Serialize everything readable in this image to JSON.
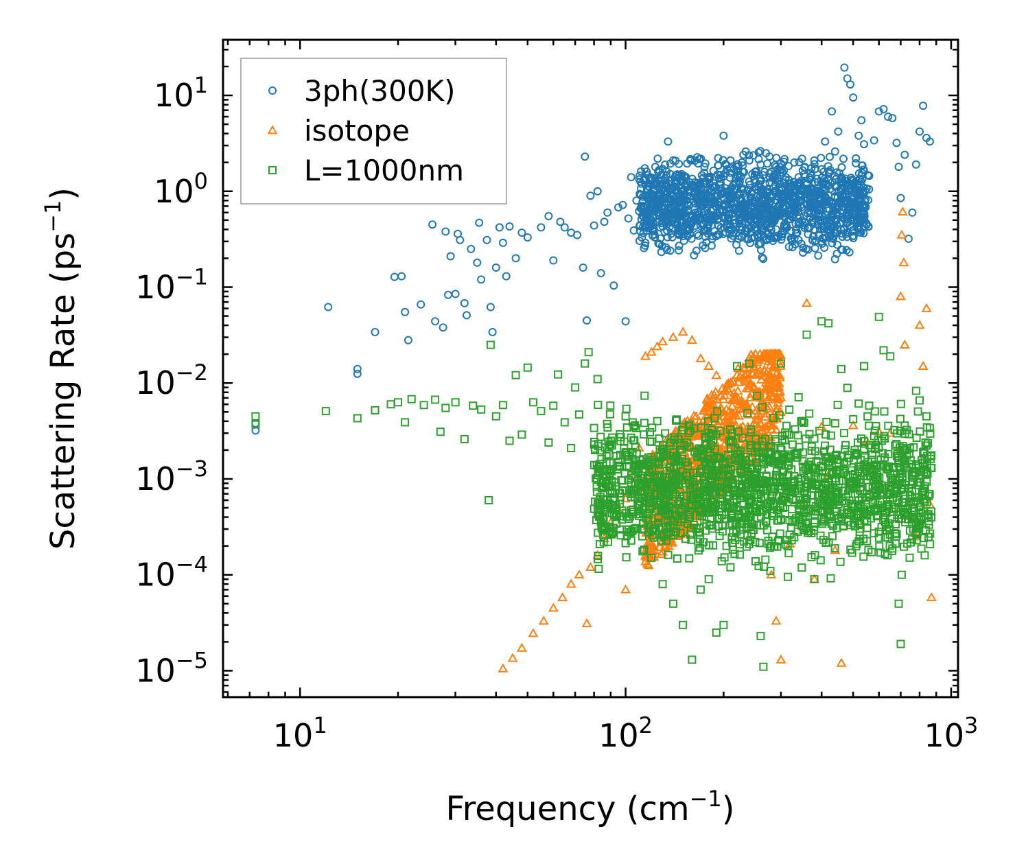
{
  "chart_data": {
    "type": "scatter",
    "xscale": "log",
    "yscale": "log",
    "xlim": [
      5.8,
      1050
    ],
    "ylim": [
      5.3e-06,
      38
    ],
    "xlabel": {
      "text": "Frequency (cm",
      "sup": "−1",
      "close": ")"
    },
    "ylabel": {
      "text": "Scattering Rate (ps",
      "sup": "−1",
      "close": ")"
    },
    "x_ticks": [
      {
        "value": 10,
        "base": "10",
        "exp": "1"
      },
      {
        "value": 100,
        "base": "10",
        "exp": "2"
      },
      {
        "value": 1000,
        "base": "10",
        "exp": "3"
      }
    ],
    "y_ticks": [
      {
        "value": 10,
        "base": "10",
        "exp": "1"
      },
      {
        "value": 1,
        "base": "10",
        "exp": "0"
      },
      {
        "value": 0.1,
        "base": "10",
        "exp": "−1"
      },
      {
        "value": 0.01,
        "base": "10",
        "exp": "−2"
      },
      {
        "value": 0.001,
        "base": "10",
        "exp": "−3"
      },
      {
        "value": 0.0001,
        "base": "10",
        "exp": "−4"
      },
      {
        "value": 1e-05,
        "base": "10",
        "exp": "−5"
      }
    ],
    "legend": {
      "position": "top-left"
    },
    "series": [
      {
        "name": "3ph(300K)",
        "marker": "circle",
        "color": "#1f77b4",
        "points": [
          [
            7.3,
            0.0032
          ],
          [
            7.3,
            0.0038
          ],
          [
            12.2,
            0.062
          ],
          [
            15,
            0.0125
          ],
          [
            15,
            0.014
          ],
          [
            17,
            0.034
          ],
          [
            19.5,
            0.128
          ],
          [
            20.5,
            0.13
          ],
          [
            21,
            0.055
          ],
          [
            21.5,
            0.028
          ],
          [
            23.5,
            0.066
          ],
          [
            25.5,
            0.45
          ],
          [
            26,
            0.044
          ],
          [
            27.5,
            0.038
          ],
          [
            28,
            0.38
          ],
          [
            28.5,
            0.083
          ],
          [
            29,
            0.21
          ],
          [
            30,
            0.085
          ],
          [
            30.5,
            0.36
          ],
          [
            31,
            0.31
          ],
          [
            32,
            0.068
          ],
          [
            32.5,
            0.051
          ],
          [
            33.5,
            0.25
          ],
          [
            35,
            0.18
          ],
          [
            35.5,
            0.47
          ],
          [
            36,
            0.12
          ],
          [
            37.5,
            0.31
          ],
          [
            38.5,
            0.062
          ],
          [
            39,
            0.034
          ],
          [
            40,
            0.16
          ],
          [
            41,
            0.42
          ],
          [
            42,
            0.29
          ],
          [
            43,
            0.13
          ],
          [
            44,
            0.43
          ],
          [
            46,
            0.2
          ],
          [
            48,
            0.37
          ],
          [
            50,
            0.33
          ],
          [
            55,
            0.42
          ],
          [
            58,
            0.55
          ],
          [
            60,
            0.19
          ],
          [
            63,
            0.48
          ],
          [
            65,
            0.42
          ],
          [
            68,
            0.37
          ],
          [
            71,
            0.35
          ],
          [
            74,
            0.16
          ],
          [
            75,
            2.3
          ],
          [
            76,
            0.045
          ],
          [
            78,
            0.9
          ],
          [
            80,
            0.44
          ],
          [
            82,
            1.0
          ],
          [
            84,
            0.14
          ],
          [
            86,
            0.48
          ],
          [
            88,
            0.6
          ],
          [
            92,
            0.104
          ],
          [
            95,
            0.68
          ],
          [
            98,
            0.72
          ],
          [
            100,
            0.044
          ],
          [
            102,
            0.52
          ],
          [
            104,
            1.4
          ],
          [
            106,
            0.39
          ],
          [
            108,
            0.8
          ],
          [
            110,
            0.62
          ],
          [
            112,
            1.2
          ],
          [
            115,
            0.29
          ],
          [
            118,
            0.92
          ],
          [
            120,
            0.5
          ],
          [
            123,
            0.33
          ],
          [
            126,
            1.6
          ],
          [
            130,
            0.82
          ],
          [
            133,
            0.26
          ],
          [
            135,
            3.3
          ],
          [
            138,
            0.36
          ],
          [
            140,
            2.1
          ],
          [
            143,
            0.56
          ],
          [
            146,
            0.27
          ],
          [
            148,
            0.66
          ],
          [
            152,
            1.18
          ],
          [
            155,
            0.34
          ],
          [
            158,
            0.45
          ],
          [
            162,
            0.79
          ],
          [
            165,
            0.24
          ],
          [
            170,
            0.51
          ],
          [
            175,
            0.39
          ],
          [
            180,
            1.32
          ],
          [
            185,
            1.1
          ],
          [
            190,
            0.9
          ],
          [
            195,
            1.25
          ],
          [
            200,
            3.8
          ],
          [
            205,
            1.7
          ],
          [
            210,
            2.1
          ],
          [
            220,
            1.48
          ],
          [
            230,
            2.4
          ],
          [
            240,
            2.1
          ],
          [
            250,
            1.6
          ],
          [
            260,
            1.9
          ],
          [
            270,
            2.5
          ],
          [
            280,
            1.6
          ],
          [
            290,
            1.8
          ],
          [
            300,
            1.95
          ],
          [
            310,
            0.88
          ],
          [
            320,
            1.2
          ],
          [
            330,
            2.0
          ],
          [
            340,
            1.4
          ],
          [
            350,
            1.65
          ],
          [
            360,
            0.86
          ],
          [
            370,
            1.55
          ],
          [
            380,
            2.1
          ],
          [
            390,
            1.25
          ],
          [
            400,
            1.7
          ],
          [
            410,
            3.3
          ],
          [
            420,
            1.3
          ],
          [
            430,
            6.8
          ],
          [
            440,
            2.6
          ],
          [
            450,
            4.2
          ],
          [
            460,
            1.4
          ],
          [
            470,
            19.5
          ],
          [
            480,
            15
          ],
          [
            490,
            13
          ],
          [
            500,
            9.5
          ],
          [
            510,
            2.2
          ],
          [
            520,
            3.8
          ],
          [
            530,
            5.5
          ],
          [
            540,
            3.1
          ],
          [
            560,
            1.45
          ],
          [
            580,
            3.4
          ],
          [
            600,
            6.8
          ],
          [
            620,
            7.2
          ],
          [
            640,
            6.0
          ],
          [
            660,
            5.8
          ],
          [
            680,
            3.2
          ],
          [
            690,
            1.8
          ],
          [
            700,
            0.85
          ],
          [
            720,
            2.4
          ],
          [
            740,
            0.32
          ],
          [
            760,
            0.6
          ],
          [
            780,
            1.9
          ],
          [
            800,
            4.2
          ],
          [
            820,
            7.8
          ],
          [
            840,
            3.6
          ],
          [
            860,
            3.3
          ]
        ],
        "cloud": {
          "x": [
            110,
            560
          ],
          "y": [
            0.16,
            3.2
          ],
          "count": 1400
        }
      },
      {
        "name": "isotope",
        "marker": "triangle",
        "color": "#ff7f0e",
        "points": [
          [
            42,
            1.05e-05
          ],
          [
            45,
            1.35e-05
          ],
          [
            48,
            1.72e-05
          ],
          [
            52,
            2.45e-05
          ],
          [
            56,
            3.3e-05
          ],
          [
            60,
            4.5e-05
          ],
          [
            64,
            5.8e-05
          ],
          [
            68,
            8e-05
          ],
          [
            72,
            0.0001
          ],
          [
            76,
            3.1e-05
          ],
          [
            78,
            0.00012
          ],
          [
            82,
            0.00016
          ],
          [
            86,
            0.00024
          ],
          [
            90,
            0.00035
          ],
          [
            95,
            0.00048
          ],
          [
            100,
            0.00062
          ],
          [
            100,
            7e-05
          ],
          [
            105,
            0.0011
          ],
          [
            110,
            0.0021
          ],
          [
            115,
            0.019
          ],
          [
            120,
            0.021
          ],
          [
            125,
            0.024
          ],
          [
            130,
            0.027
          ],
          [
            140,
            0.03
          ],
          [
            150,
            0.034
          ],
          [
            160,
            0.028
          ],
          [
            170,
            0.018
          ],
          [
            180,
            0.015
          ],
          [
            190,
            0.012
          ],
          [
            200,
            0.005
          ],
          [
            210,
            0.01
          ],
          [
            230,
            0.0062
          ],
          [
            260,
            0.0023
          ],
          [
            270,
            0.0028
          ],
          [
            280,
            0.0001
          ],
          [
            290,
            3.3e-05
          ],
          [
            300,
            1.3e-05
          ],
          [
            320,
            0.00021
          ],
          [
            340,
            0.00055
          ],
          [
            360,
            0.068
          ],
          [
            380,
            9e-05
          ],
          [
            400,
            0.0035
          ],
          [
            420,
            0.0011
          ],
          [
            440,
            0.00018
          ],
          [
            460,
            1.2e-05
          ],
          [
            470,
            0.00042
          ],
          [
            500,
            0.0036
          ],
          [
            520,
            0.00036
          ],
          [
            550,
            0.0025
          ],
          [
            600,
            0.0031
          ],
          [
            650,
            0.003
          ],
          [
            700,
            0.002
          ],
          [
            700,
            0.08
          ],
          [
            705,
            0.35
          ],
          [
            710,
            0.61
          ],
          [
            715,
            0.18
          ],
          [
            720,
            0.025
          ],
          [
            780,
            0.00025
          ],
          [
            800,
            0.04
          ],
          [
            820,
            0.015
          ],
          [
            840,
            0.06
          ],
          [
            860,
            0.00054
          ],
          [
            870,
            5.8e-05
          ]
        ],
        "cloud": {
          "x": [
            115,
            300
          ],
          "y": [
            5e-05,
            0.02
          ],
          "count": 900
        }
      },
      {
        "name": "L=1000nm",
        "marker": "square",
        "color": "#2ca02c",
        "points": [
          [
            7.3,
            0.0037
          ],
          [
            7.3,
            0.0045
          ],
          [
            12,
            0.0051
          ],
          [
            15,
            0.0043
          ],
          [
            17,
            0.0052
          ],
          [
            19,
            0.006
          ],
          [
            20,
            0.0063
          ],
          [
            21,
            0.0039
          ],
          [
            22,
            0.0068
          ],
          [
            24,
            0.0059
          ],
          [
            26,
            0.0067
          ],
          [
            27,
            0.0031
          ],
          [
            28,
            0.0055
          ],
          [
            30,
            0.0063
          ],
          [
            32,
            0.0026
          ],
          [
            34,
            0.0058
          ],
          [
            36,
            0.0053
          ],
          [
            38,
            0.0006
          ],
          [
            38.5,
            0.025
          ],
          [
            40,
            0.0045
          ],
          [
            42,
            0.0059
          ],
          [
            44,
            0.0025
          ],
          [
            46,
            0.0121
          ],
          [
            48,
            0.0029
          ],
          [
            50,
            0.0145
          ],
          [
            52,
            0.0063
          ],
          [
            55,
            0.0051
          ],
          [
            58,
            0.0024
          ],
          [
            60,
            0.0058
          ],
          [
            62,
            0.0123
          ],
          [
            65,
            0.0039
          ],
          [
            68,
            0.0021
          ],
          [
            70,
            0.009
          ],
          [
            72,
            0.0047
          ],
          [
            75,
            0.016
          ],
          [
            77,
            0.021
          ],
          [
            80,
            0.0034
          ],
          [
            82,
            0.011
          ],
          [
            85,
            0.0008
          ],
          [
            88,
            0.0012
          ],
          [
            90,
            0.0025
          ],
          [
            95,
            0.0015
          ],
          [
            100,
            0.0045
          ],
          [
            106,
            0.0003
          ],
          [
            110,
            0.0009
          ],
          [
            120,
            0.00015
          ],
          [
            130,
            8e-05
          ],
          [
            140,
            5e-05
          ],
          [
            150,
            3e-05
          ],
          [
            160,
            1.3e-05
          ],
          [
            170,
            7e-05
          ],
          [
            180,
            9e-05
          ],
          [
            190,
            2.5e-05
          ],
          [
            200,
            3e-05
          ],
          [
            210,
            0.00012
          ],
          [
            220,
            0.015
          ],
          [
            240,
            0.016
          ],
          [
            250,
            0.00022
          ],
          [
            260,
            2.3e-05
          ],
          [
            265,
            1.1e-05
          ],
          [
            280,
            0.0002
          ],
          [
            300,
            0.016
          ],
          [
            320,
            0.0008
          ],
          [
            340,
            0.0071
          ],
          [
            360,
            0.032
          ],
          [
            380,
            9e-05
          ],
          [
            400,
            0.044
          ],
          [
            420,
            0.042
          ],
          [
            440,
            0.0038
          ],
          [
            460,
            0.014
          ],
          [
            480,
            0.0089
          ],
          [
            500,
            0.0042
          ],
          [
            520,
            0.0061
          ],
          [
            540,
            0.015
          ],
          [
            560,
            0.0058
          ],
          [
            580,
            0.0028
          ],
          [
            600,
            0.049
          ],
          [
            620,
            0.022
          ],
          [
            650,
            0.019
          ],
          [
            690,
            5e-05
          ],
          [
            700,
            1.9e-05
          ],
          [
            705,
            0.0001
          ],
          [
            710,
            0.002
          ],
          [
            715,
            0.0016
          ],
          [
            720,
            0.0036
          ],
          [
            740,
            0.00038
          ],
          [
            760,
            0.0011
          ],
          [
            780,
            0.0083
          ],
          [
            800,
            0.0066
          ],
          [
            820,
            0.0019
          ],
          [
            840,
            0.0045
          ],
          [
            860,
            0.0034
          ],
          [
            870,
            0.0013
          ]
        ],
        "cloud": {
          "x": [
            80,
            870
          ],
          "y": [
            8e-05,
            0.008
          ],
          "count": 1700
        }
      }
    ]
  }
}
